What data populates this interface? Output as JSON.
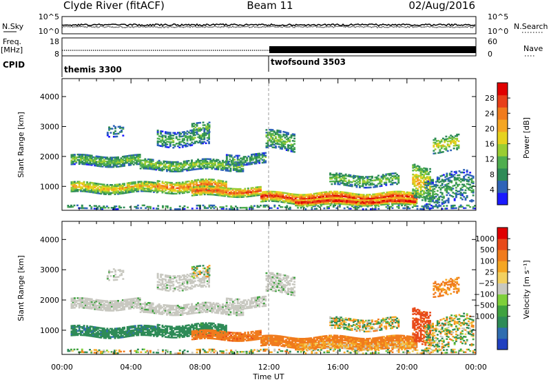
{
  "header": {
    "title_left": "Clyde River (fitACF)",
    "title_center": "Beam 11",
    "title_right": "02/Aug/2016"
  },
  "noise_panel": {
    "left_label": "N.Sky",
    "right_label": "N.Search",
    "left_ticks": [
      "10^5",
      "10^0"
    ],
    "right_ticks": [
      "10^5",
      "10^0"
    ]
  },
  "freq_panel": {
    "left_label_1": "Freq.",
    "left_label_2": "[MHz]",
    "left_ticks": [
      "18",
      "8"
    ],
    "right_label": "Nave",
    "right_ticks": [
      "60",
      "0"
    ]
  },
  "cpid_panel": {
    "label": "CPID",
    "segments": [
      "themis 3300",
      "twofsound 3503"
    ],
    "switch_hour": 12
  },
  "chart_data": [
    {
      "type": "heatmap",
      "panel": "power",
      "ylabel": "Slant Range [km]",
      "y_ticks": [
        "1000",
        "2000",
        "3000",
        "4000"
      ],
      "ylim": [
        200,
        4600
      ],
      "xlim": [
        0,
        24
      ],
      "colorbar": {
        "label": "Power [dB]",
        "ticks": [
          "4",
          "8",
          "12",
          "16",
          "20",
          "24",
          "28"
        ],
        "colors": [
          "#1a1aff",
          "#2e63b8",
          "#2e8b57",
          "#4fae4f",
          "#9acd32",
          "#e6d21e",
          "#f5a623",
          "#f07b1d",
          "#e8401a",
          "#e00000"
        ]
      }
    },
    {
      "type": "heatmap",
      "panel": "velocity",
      "ylabel": "Slant Range [km]",
      "y_ticks": [
        "1000",
        "2000",
        "3000",
        "4000"
      ],
      "ylim": [
        200,
        4600
      ],
      "xlim": [
        0,
        24
      ],
      "x_ticks": [
        "00:00",
        "04:00",
        "08:00",
        "12:00",
        "16:00",
        "20:00",
        "00:00"
      ],
      "xlabel": "Time UT",
      "colorbar": {
        "label": "Velocity [m s⁻¹]",
        "ticks": [
          "1000",
          "500",
          "100",
          "25",
          "−25",
          "−100",
          "−500",
          "−1000"
        ],
        "colors": [
          "#2040c0",
          "#2f6db0",
          "#2e8b57",
          "#3fa23f",
          "#7ecf3a",
          "#c8c8c0",
          "#f2d060",
          "#f5a623",
          "#f07b1d",
          "#e84a1a",
          "#e00000"
        ]
      }
    }
  ]
}
